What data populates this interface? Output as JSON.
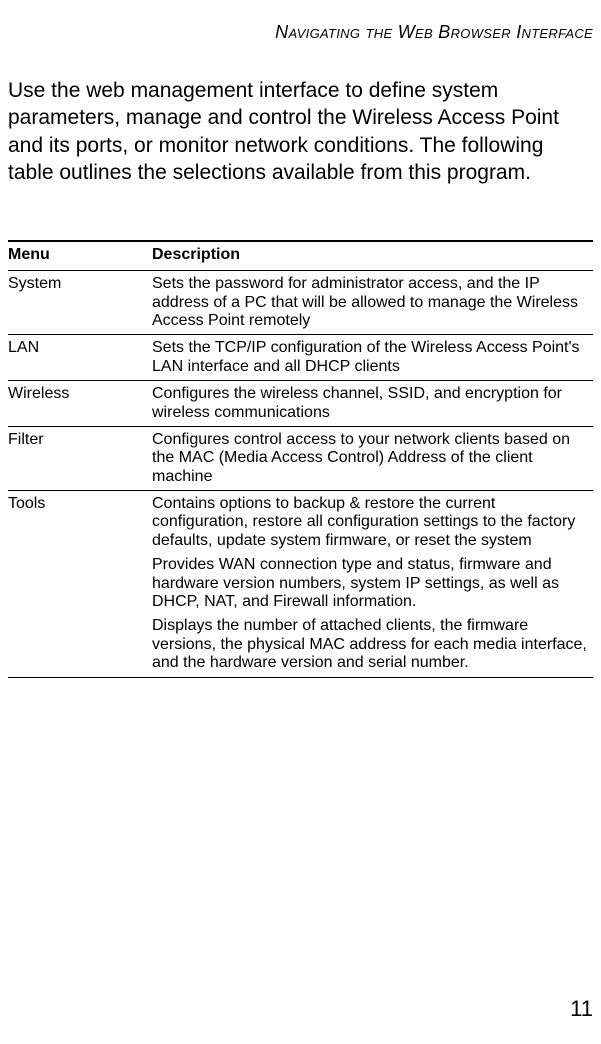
{
  "runningHead": "Navigating the Web Browser Interface",
  "intro": "Use the web management interface to define system parameters, manage and control the Wireless Access Point and its ports, or monitor network conditions. The following table outlines the selections available from this program.",
  "table": {
    "headers": {
      "menu": "Menu",
      "description": "Description"
    },
    "rows": [
      {
        "menu": "System",
        "description": [
          "Sets the password for administrator access, and the IP address of a PC that will be allowed to manage the Wireless Access Point remotely"
        ]
      },
      {
        "menu": "LAN",
        "description": [
          "Sets the TCP/IP configuration of the Wireless Access Point's LAN interface and all DHCP clients"
        ]
      },
      {
        "menu": "Wireless",
        "description": [
          "Configures the wireless channel, SSID, and encryption for wireless communications"
        ]
      },
      {
        "menu": "Filter",
        "description": [
          "Configures control access to your network clients based on the MAC (Media Access Control) Address of the client machine"
        ]
      },
      {
        "menu": "Tools",
        "description": [
          "Contains options to backup & restore the current configuration, restore all configuration settings to the factory defaults, update system firmware, or reset the system",
          "Provides WAN connection type and status, firmware and hardware version numbers, system IP settings, as well as DHCP, NAT, and Firewall information.",
          "Displays the number of attached clients, the firmware versions, the physical MAC address for each media interface, and the hardware version and serial number."
        ]
      }
    ]
  },
  "pageNumber": "11"
}
